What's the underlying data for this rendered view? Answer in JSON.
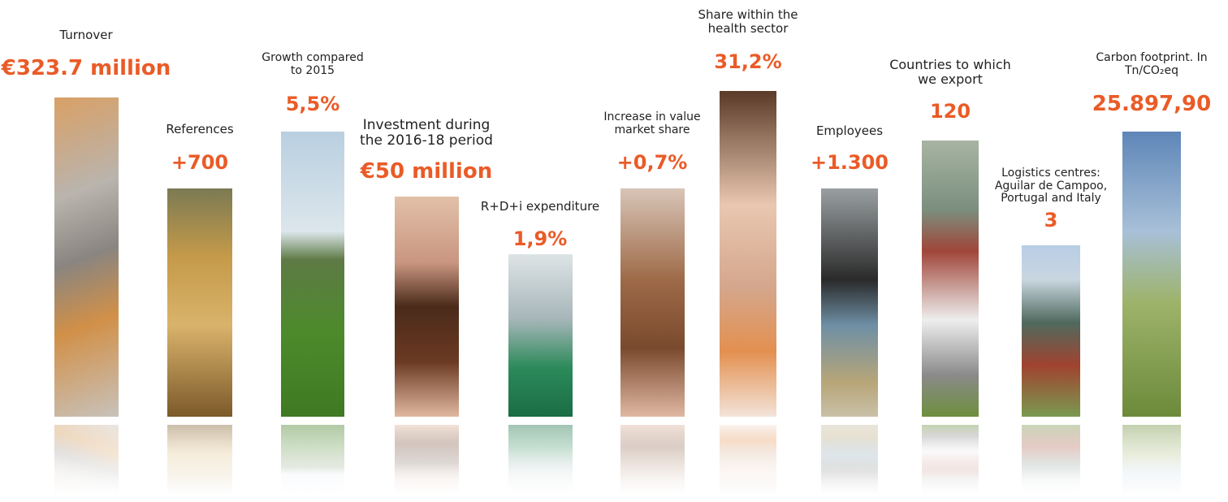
{
  "items": [
    {
      "label": [
        "Turnover"
      ],
      "value": "€323.7 million"
    },
    {
      "label": [
        "References"
      ],
      "value": "+700"
    },
    {
      "label": [
        "Growth compared",
        "to 2015"
      ],
      "value": "5,5%"
    },
    {
      "label": [
        "Investment during",
        "the 2016-18 period"
      ],
      "value": "€50 million"
    },
    {
      "label": [
        "R+D+i expenditure"
      ],
      "value": "1,9%"
    },
    {
      "label": [
        "Increase in value",
        "market share"
      ],
      "value": "+0,7%"
    },
    {
      "label": [
        "Share within the",
        "health sector"
      ],
      "value": "31,2%"
    },
    {
      "label": [
        "Employees"
      ],
      "value": "+1.300"
    },
    {
      "label": [
        "Countries to which",
        "we export"
      ],
      "value": "120"
    },
    {
      "label": [
        "Logistics centres:",
        "Aguilar de Campoo,",
        "Portugal and Italy"
      ],
      "value": "3"
    },
    {
      "label": [
        "Carbon footprint. In",
        "Tn/CO₂eq"
      ],
      "value": "25.897,90"
    }
  ]
}
